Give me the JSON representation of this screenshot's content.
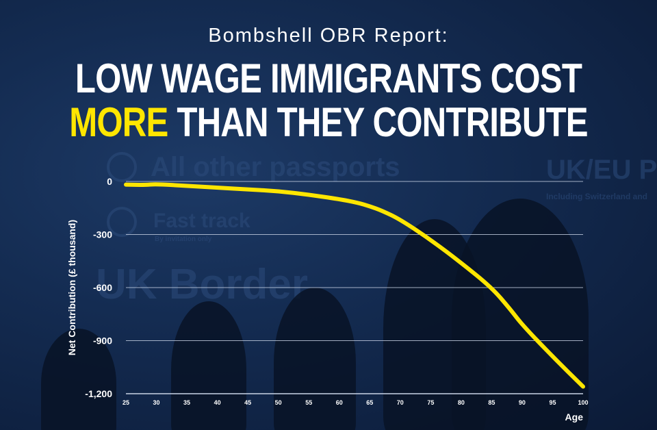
{
  "header": {
    "subtitle": "Bombshell OBR Report:",
    "headline_line1": "LOW WAGE IMMIGRANTS COST",
    "headline_highlight": "MORE",
    "headline_line2_rest": " THAN THEY CONTRIBUTE"
  },
  "background_signs": {
    "sign1": "All other passports",
    "sign2": "Fast track",
    "sign2_sub": "By invitation only",
    "sign3": "UK Border",
    "sign4": "UK/EU P",
    "sign4_sub": "Including Switzerland and"
  },
  "colors": {
    "line": "#ffe600",
    "highlight": "#ffe600",
    "text": "#ffffff",
    "grid": "#c9d3e6"
  },
  "chart_data": {
    "type": "line",
    "xlabel": "Age",
    "ylabel": "Net Contribution (£ thousand)",
    "x_ticks": [
      25,
      30,
      35,
      40,
      45,
      50,
      55,
      60,
      65,
      70,
      75,
      80,
      85,
      90,
      95,
      100
    ],
    "y_ticks": [
      0,
      -300,
      -600,
      -900,
      -1200
    ],
    "y_tick_labels": [
      "0",
      "-300",
      "-600",
      "-900",
      "-1,200"
    ],
    "xlim": [
      25,
      100
    ],
    "ylim": [
      -1200,
      0
    ],
    "grid": true,
    "series": [
      {
        "x": [
          25,
          28,
          30,
          35,
          40,
          45,
          50,
          55,
          60,
          63,
          65,
          67,
          70,
          75,
          80,
          85,
          88,
          90,
          95,
          100
        ],
        "values": [
          -18,
          -20,
          -15,
          -25,
          -35,
          -45,
          -55,
          -75,
          -100,
          -120,
          -140,
          -165,
          -215,
          -330,
          -460,
          -600,
          -720,
          -810,
          -990,
          -1160
        ]
      }
    ]
  }
}
